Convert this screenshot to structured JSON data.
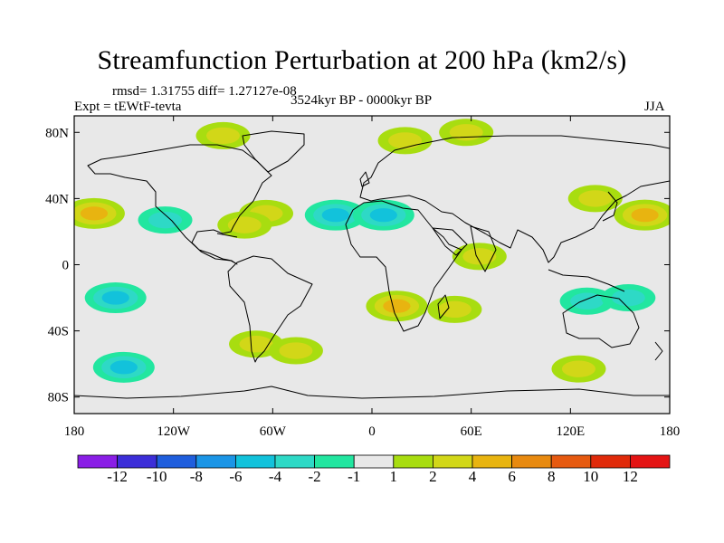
{
  "title": "Streamfunction Perturbation at 200 hPa (km2/s)",
  "stats_text": "rmsd= 1.31755 diff= 1.27127e-08",
  "experiment_text": "Expt = tEWtF-tevta",
  "period_text": "3524kyr BP - 0000kyr BP",
  "season_text": "JJA",
  "chart_data": {
    "type": "heatmap",
    "title": "Streamfunction Perturbation at 200 hPa (km2/s)",
    "variable": "Streamfunction Perturbation at 200 hPa",
    "units": "km2/s",
    "xlim": [
      -180,
      180
    ],
    "ylim": [
      -90,
      90
    ],
    "x_ticks": [
      {
        "value": -180,
        "label": "180"
      },
      {
        "value": -120,
        "label": "120W"
      },
      {
        "value": -60,
        "label": "60W"
      },
      {
        "value": 0,
        "label": "0"
      },
      {
        "value": 60,
        "label": "60E"
      },
      {
        "value": 120,
        "label": "120E"
      },
      {
        "value": 180,
        "label": "180"
      }
    ],
    "y_ticks": [
      {
        "value": 80,
        "label": "80N"
      },
      {
        "value": 40,
        "label": "40N"
      },
      {
        "value": 0,
        "label": "0"
      },
      {
        "value": -40,
        "label": "40S"
      },
      {
        "value": -80,
        "label": "80S"
      }
    ],
    "colorbar": {
      "levels": [
        -12,
        -10,
        -8,
        -6,
        -4,
        -2,
        -1,
        1,
        2,
        4,
        6,
        8,
        10,
        12
      ],
      "labels": [
        "-12",
        "-10",
        "-8",
        "-6",
        "-4",
        "-2",
        "-1",
        "1",
        "2",
        "4",
        "6",
        "8",
        "10",
        "12"
      ],
      "colors": [
        "#8A1EE6",
        "#3C2ED8",
        "#1F5EDD",
        "#1B95E6",
        "#12C2DB",
        "#2ED9C6",
        "#22E6A0",
        "#E8E8E8",
        "#A8DD10",
        "#D2D718",
        "#E8B410",
        "#E88A10",
        "#E65A10",
        "#E02A0A",
        "#E41414"
      ]
    },
    "anomalies": [
      {
        "lon": -168,
        "lat": 31,
        "value": 5
      },
      {
        "lon": -155,
        "lat": -20,
        "value": -4
      },
      {
        "lon": -150,
        "lat": -62,
        "value": -4
      },
      {
        "lon": -125,
        "lat": 27,
        "value": -2
      },
      {
        "lon": -90,
        "lat": 78,
        "value": 2
      },
      {
        "lon": -64,
        "lat": 31,
        "value": 3
      },
      {
        "lon": -77,
        "lat": 24,
        "value": 3
      },
      {
        "lon": -70,
        "lat": -48,
        "value": 2
      },
      {
        "lon": -46,
        "lat": -52,
        "value": 2
      },
      {
        "lon": -22,
        "lat": 30,
        "value": -5
      },
      {
        "lon": 7,
        "lat": 30,
        "value": -5
      },
      {
        "lon": 20,
        "lat": 75,
        "value": 2
      },
      {
        "lon": 57,
        "lat": 80,
        "value": 2
      },
      {
        "lon": 15,
        "lat": -25,
        "value": 4
      },
      {
        "lon": 50,
        "lat": -27,
        "value": 3
      },
      {
        "lon": 65,
        "lat": 5,
        "value": 2
      },
      {
        "lon": 135,
        "lat": 40,
        "value": 3
      },
      {
        "lon": 165,
        "lat": 30,
        "value": 4
      },
      {
        "lon": 130,
        "lat": -22,
        "value": -3
      },
      {
        "lon": 155,
        "lat": -20,
        "value": -3
      },
      {
        "lon": 125,
        "lat": -63,
        "value": 2
      }
    ]
  }
}
